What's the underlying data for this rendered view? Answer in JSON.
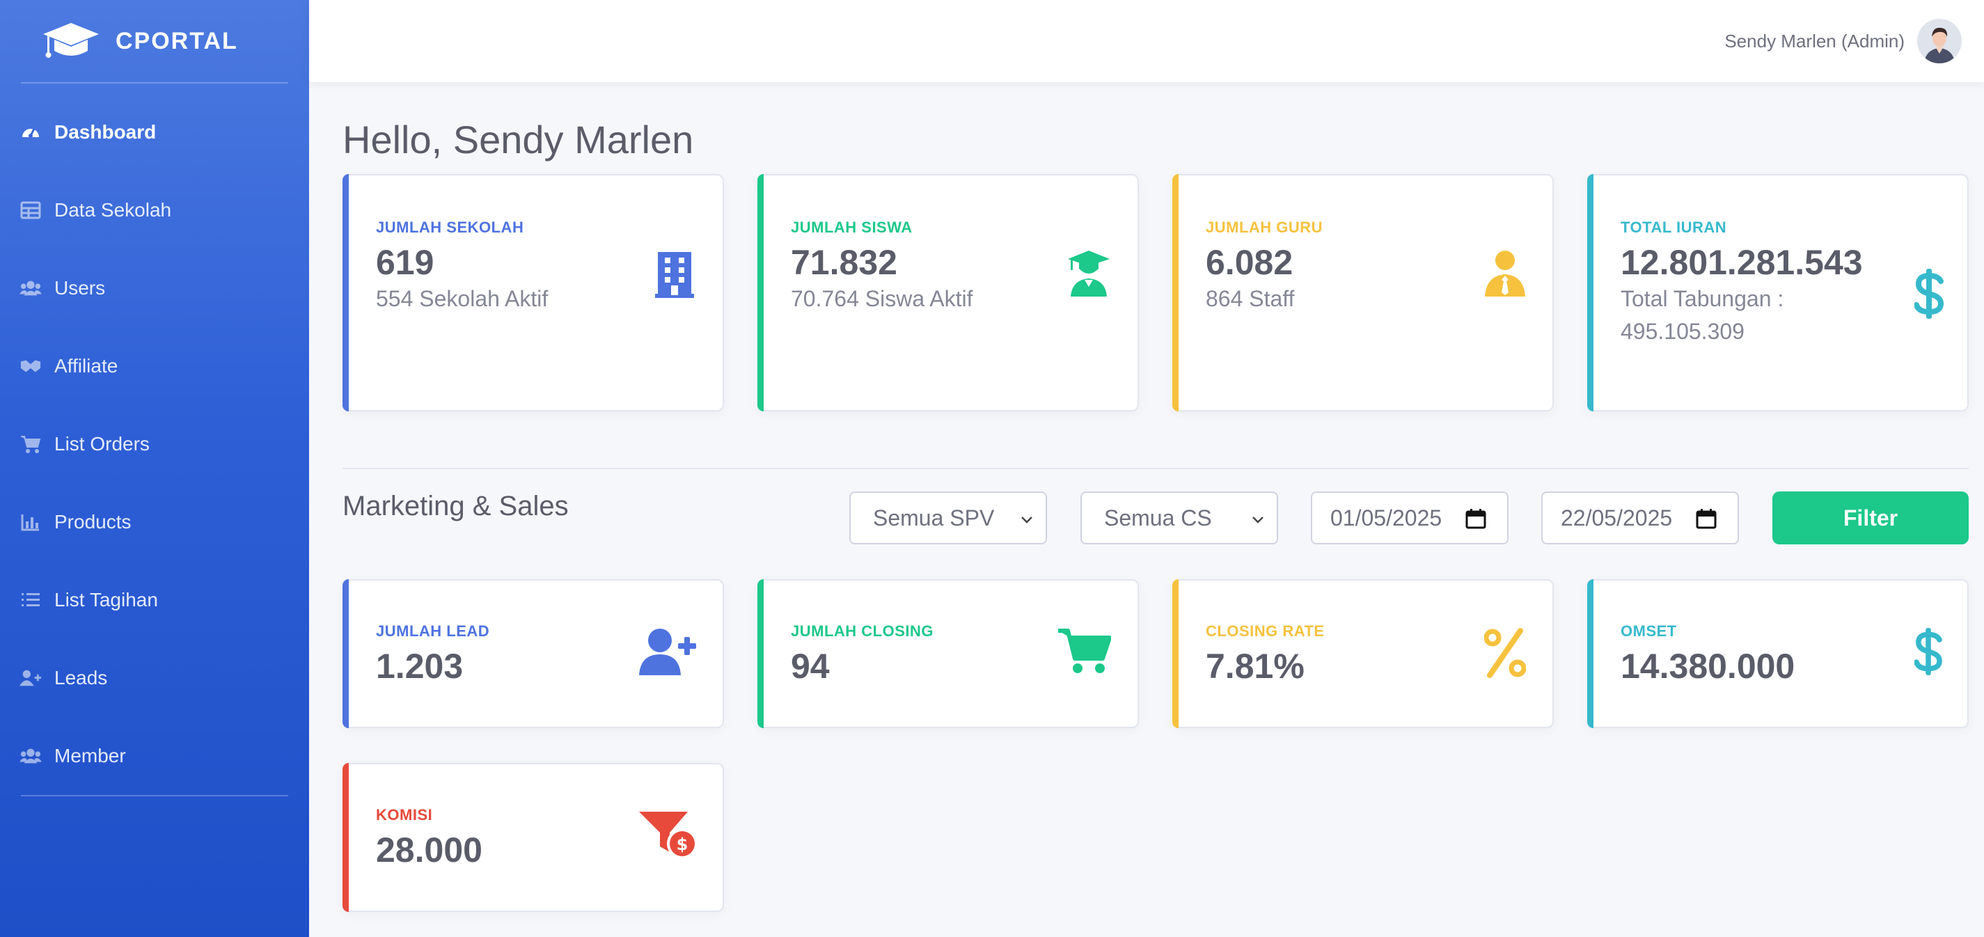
{
  "brand": {
    "name": "CPORTAL"
  },
  "sidebar": {
    "items": [
      {
        "label": "Dashboard",
        "icon": "tachometer-icon",
        "active": true
      },
      {
        "label": "Data Sekolah",
        "icon": "table-icon"
      },
      {
        "label": "Users",
        "icon": "users-icon"
      },
      {
        "label": "Affiliate",
        "icon": "handshake-icon"
      },
      {
        "label": "List Orders",
        "icon": "cart-icon"
      },
      {
        "label": "Products",
        "icon": "bar-chart-icon"
      },
      {
        "label": "List Tagihan",
        "icon": "list-icon"
      },
      {
        "label": "Leads",
        "icon": "user-plus-icon"
      },
      {
        "label": "Member",
        "icon": "users-icon"
      }
    ]
  },
  "topbar": {
    "user_name": "Sendy Marlen (Admin)"
  },
  "greeting": "Hello, Sendy Marlen",
  "stats": [
    {
      "label": "JUMLAH SEKOLAH",
      "value": "619",
      "sub": "554 Sekolah Aktif",
      "color": "#4e73df",
      "icon": "building-icon"
    },
    {
      "label": "JUMLAH SISWA",
      "value": "71.832",
      "sub": "70.764 Siswa Aktif",
      "color": "#1cc88a",
      "icon": "graduate-icon"
    },
    {
      "label": "JUMLAH GURU",
      "value": "6.082",
      "sub": "864 Staff",
      "color": "#f6c23e",
      "icon": "user-tie-icon"
    },
    {
      "label": "TOTAL IURAN",
      "value": "12.801.281.543",
      "sub": "Total Tabungan : 495.105.309",
      "color": "#36b9cc",
      "icon": "dollar-icon"
    }
  ],
  "marketing": {
    "title": "Marketing & Sales",
    "spv_select": "Semua SPV",
    "cs_select": "Semua CS",
    "date_from": "01/05/2025",
    "date_to": "22/05/2025",
    "filter_label": "Filter",
    "cards": [
      {
        "label": "JUMLAH LEAD",
        "value": "1.203",
        "color": "#4e73df",
        "icon": "user-plus-icon"
      },
      {
        "label": "JUMLAH CLOSING",
        "value": "94",
        "color": "#1cc88a",
        "icon": "cart-icon"
      },
      {
        "label": "CLOSING RATE",
        "value": "7.81%",
        "color": "#f6c23e",
        "icon": "percent-icon"
      },
      {
        "label": "OMSET",
        "value": "14.380.000",
        "color": "#36b9cc",
        "icon": "dollar-icon"
      },
      {
        "label": "KOMISI",
        "value": "28.000",
        "color": "#e74a3b",
        "icon": "funnel-dollar-icon"
      }
    ]
  }
}
